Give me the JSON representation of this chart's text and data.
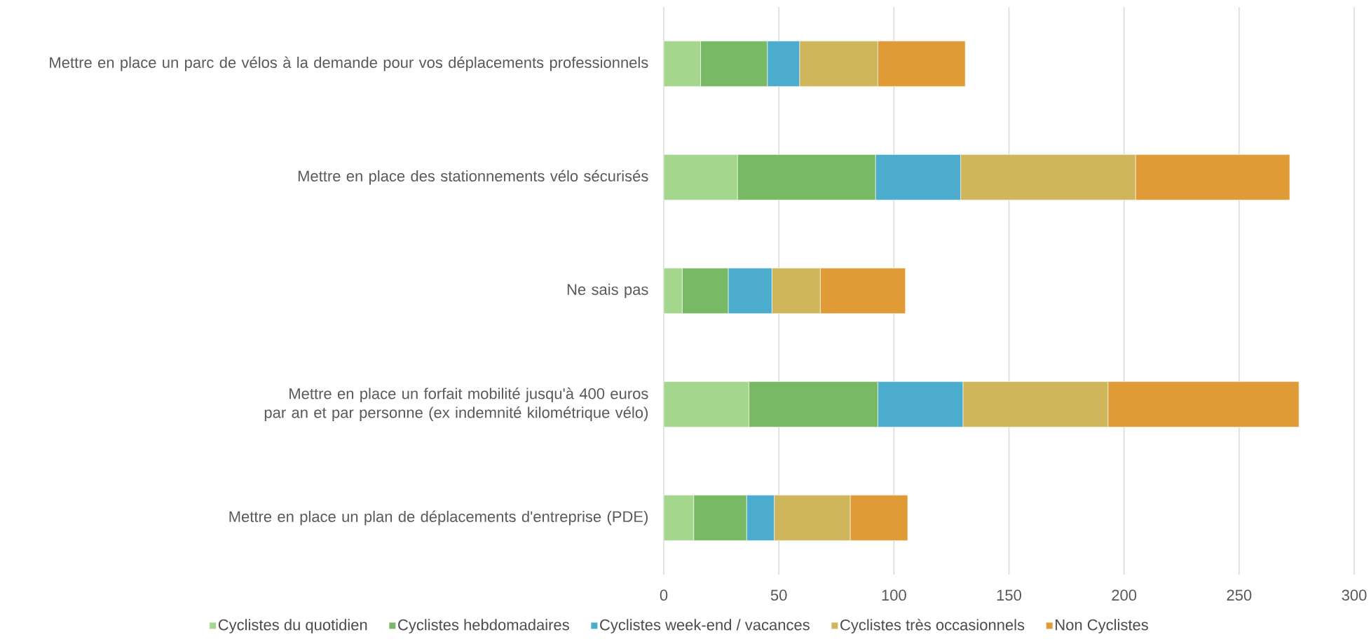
{
  "chart_data": {
    "type": "bar",
    "orientation": "horizontal",
    "stacked": true,
    "categories": [
      "Mettre en place un parc de vélos à la demande pour vos déplacements professionnels",
      "Mettre en place des stationnements vélo sécurisés",
      "Ne sais pas",
      "Mettre en place un forfait mobilité jusqu'à 400 euros par an et par personne (ex indemnité kilométrique vélo)",
      "Mettre en place un plan de déplacements d'entreprise (PDE)"
    ],
    "series": [
      {
        "name": "Cyclistes du quotidien",
        "color": "#a5d68d",
        "values": [
          16,
          32,
          8,
          37,
          13
        ]
      },
      {
        "name": "Cyclistes hebdomadaires",
        "color": "#78b965",
        "values": [
          29,
          60,
          20,
          56,
          23
        ]
      },
      {
        "name": "Cyclistes week-end / vacances",
        "color": "#4bacce",
        "values": [
          14,
          37,
          19,
          37,
          12
        ]
      },
      {
        "name": "Cyclistes très occasionnels",
        "color": "#cfb65a",
        "values": [
          34,
          76,
          21,
          63,
          33
        ]
      },
      {
        "name": "Non Cyclistes",
        "color": "#e09b36",
        "values": [
          38,
          67,
          37,
          83,
          25
        ]
      }
    ],
    "xlim": [
      0,
      300
    ],
    "xticks": [
      0,
      50,
      100,
      150,
      200,
      250,
      300
    ],
    "grid": "x",
    "legend": "bottom"
  }
}
